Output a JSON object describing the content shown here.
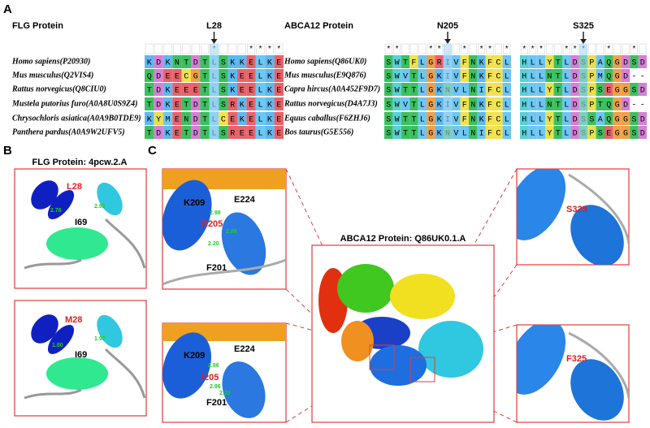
{
  "panel_labels": [
    "A",
    "B",
    "C"
  ],
  "panel_a": {
    "flg": {
      "title": "FLG Protein",
      "site": "L28",
      "conservation": "       *   ****",
      "rows": [
        {
          "species": "Homo sapiens(P20930)",
          "sequence": "KDKNTDTLSKKELKE"
        },
        {
          "species": "Mus musculus(Q2VIS4)",
          "sequence": "QDEECGTLSKEELKE"
        },
        {
          "species": "Rattus norvegicus(Q8CIU0)",
          "sequence": "TDKEEETLSKEELKE"
        },
        {
          "species": "Mustela putorius furo(A0A8U0S9Z4)",
          "sequence": "TDKETDTLSRKELKE"
        },
        {
          "species": "Chrysochloris asiatica(A0A9B0TDE9)",
          "sequence": "KYMENDTLCEKELKE"
        },
        {
          "species": "Panthera pardus(A0A9W2UFV5)",
          "sequence": "TDKETDTLSREELKE"
        }
      ]
    },
    "abca12": {
      "title": "ABCA12 Protein",
      "sites": [
        "N205",
        "S325"
      ],
      "conservation": [
        "**   **  * ** *",
        "***  ***  *  * "
      ],
      "rows": [
        {
          "species": "Homo sapiens(Q86UK0)",
          "blocks": [
            "SWTFLGRIVFNKFCL",
            "HLLYTLDSPAQGDSD"
          ]
        },
        {
          "species": "Mus musculus(E9Q876)",
          "blocks": [
            "SWVTLGKIVFNKFCL",
            "HLLNTLDSPMQGD--"
          ]
        },
        {
          "species": "Capra hircus(A0A452F9D7)",
          "blocks": [
            "SWTTLGKNVLNIFCL",
            "HLLYTLDSPSEGGSD"
          ]
        },
        {
          "species": "Rattus norvegicus(D4A7J3)",
          "blocks": [
            "SWVTLGKIVFNKFCL",
            "HLLNTLDSPTQGD--"
          ]
        },
        {
          "species": "Equus caballus(F6ZHJ6)",
          "blocks": [
            "SWTTLGKIVFNKFCL",
            "HLLYTLDSSAQGGSD"
          ]
        },
        {
          "species": "Bos taurus(G5E556)",
          "blocks": [
            "SWTTLGKNVLNIFCL",
            "HLLYTLDSPSEGGSD"
          ]
        }
      ]
    },
    "residue_colors": {
      "K": "#5fb8f0",
      "R": "#e8636b",
      "D": "#d77fd8",
      "E": "#e8636b",
      "N": "#3cc060",
      "Q": "#3cc060",
      "S": "#3cc060",
      "T": "#3cc060",
      "G": "#f0a048",
      "P": "#e8e050",
      "H": "#5ad0d8",
      "Y": "#e8e050",
      "F": "#f2e24c",
      "C": "#f2e24c",
      "W": "#5ad0d8",
      "L": "#6ec6f2",
      "I": "#6ec6f2",
      "V": "#6ec6f2",
      "A": "#6ec6f2",
      "M": "#6ec6f2"
    }
  },
  "panel_b": {
    "title": "FLG Protein: 4pcw.2.A",
    "views": [
      {
        "residues": [
          "L28",
          "I69"
        ],
        "distances": [
          "2.76",
          "2.92"
        ]
      },
      {
        "residues": [
          "M28",
          "I69"
        ],
        "distances": [
          "1.80",
          "1.97"
        ]
      }
    ]
  },
  "panel_c": {
    "title": "ABCA12 Protein: Q86UK0.1.A",
    "zooms": [
      {
        "residues": [
          "K209",
          "E224",
          "R205",
          "F201"
        ],
        "distances": [
          "2.98",
          "2.86",
          "2.20"
        ]
      },
      {
        "residues": [
          "K209",
          "E224",
          "I205",
          "F201"
        ],
        "distances": [
          "2.86",
          "2.86",
          "2.20"
        ]
      },
      {
        "residues": [
          "S325"
        ]
      },
      {
        "residues": [
          "F325"
        ]
      }
    ]
  }
}
